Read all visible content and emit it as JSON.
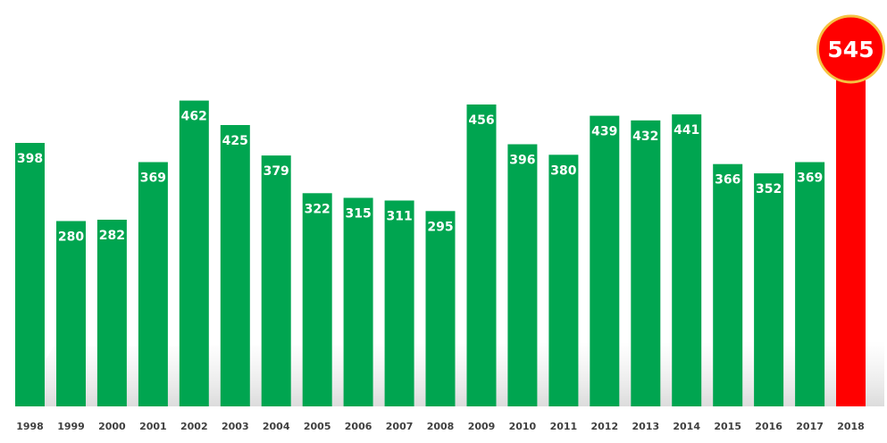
{
  "chart_data": {
    "type": "bar",
    "title": "",
    "xlabel": "",
    "ylabel": "",
    "ylim": [
      0,
      580
    ],
    "grid": false,
    "legend": "none",
    "categories": [
      "1998",
      "1999",
      "2000",
      "2001",
      "2002",
      "2003",
      "2004",
      "2005",
      "2006",
      "2007",
      "2008",
      "2009",
      "2010",
      "2011",
      "2012",
      "2013",
      "2014",
      "2015",
      "2016",
      "2017",
      "2018"
    ],
    "values": [
      398,
      280,
      282,
      369,
      462,
      425,
      379,
      322,
      315,
      311,
      295,
      456,
      396,
      380,
      439,
      432,
      441,
      366,
      352,
      369,
      545
    ],
    "data_labels": [
      "398",
      "280",
      "282",
      "369",
      "462",
      "425",
      "379",
      "322",
      "315",
      "311",
      "295",
      "456",
      "396",
      "380",
      "439",
      "432",
      "441",
      "366",
      "352",
      "369",
      "545"
    ],
    "colors": {
      "bar": "#00A550",
      "highlight_bar": "#FF0000",
      "badge_fill": "#FF0000",
      "badge_ring": "#F5C242",
      "label_text": "#FFFFFF",
      "tick_text": "#404040"
    },
    "highlight_index": 20
  }
}
